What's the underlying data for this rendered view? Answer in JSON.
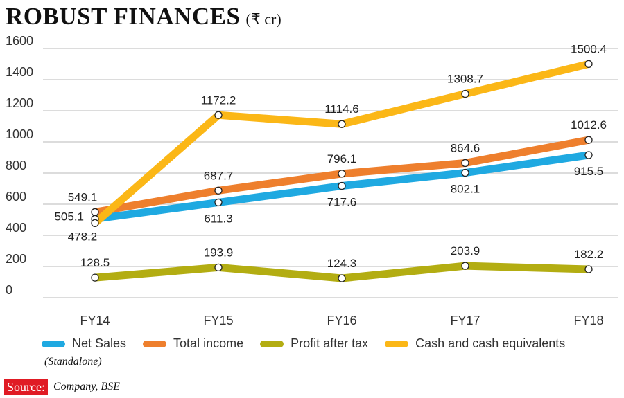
{
  "header": {
    "title": "ROBUST FINANCES",
    "unit": "(₹ cr)"
  },
  "chart_data": {
    "type": "line",
    "title": "ROBUST FINANCES",
    "subtitle": "(₹ cr)",
    "categories": [
      "FY14",
      "FY15",
      "FY16",
      "FY17",
      "FY18"
    ],
    "ylim": [
      0,
      1600
    ],
    "yticks": [
      0,
      200,
      400,
      600,
      800,
      1000,
      1200,
      1400,
      1600
    ],
    "grid": true,
    "series": [
      {
        "name": "Net Sales",
        "color": "#1fa9e1",
        "values": [
          505.1,
          611.3,
          717.6,
          802.1,
          915.5
        ]
      },
      {
        "name": "Total income",
        "color": "#ee7f2d",
        "values": [
          549.1,
          687.7,
          796.1,
          864.6,
          1012.6
        ]
      },
      {
        "name": "Profit after tax",
        "color": "#b3ad12",
        "values": [
          128.5,
          193.9,
          124.3,
          203.9,
          182.2
        ]
      },
      {
        "name": "Cash and cash equivalents",
        "color": "#fbb717",
        "values": [
          478.2,
          1172.2,
          1114.6,
          1308.7,
          1500.4
        ]
      }
    ]
  },
  "footer": {
    "note": "(Standalone)",
    "source_label": "Source:",
    "source_text": "Company, BSE"
  }
}
